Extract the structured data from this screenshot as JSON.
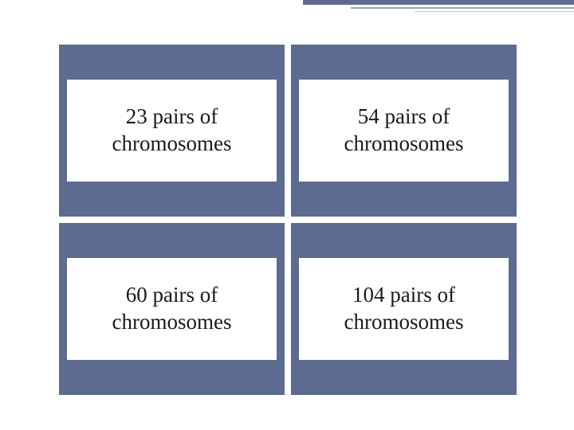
{
  "layout": {
    "slide_width": 720,
    "slide_height": 540,
    "background_color": "#ffffff",
    "grid_gap": 8
  },
  "colors": {
    "cell_bg": "#5d6b90",
    "card_bg": "#ffffff",
    "text": "#1a1a1a",
    "deco_dark": "#5d6b90",
    "deco_mid": "#9aa3bd",
    "deco_light": "#c3c9d8"
  },
  "typography": {
    "font_family": "Georgia, serif",
    "card_fontsize_pt": 20
  },
  "options": [
    {
      "label": "23 pairs of chromosomes"
    },
    {
      "label": "54 pairs of chromosomes"
    },
    {
      "label": "60 pairs of chromosomes"
    },
    {
      "label": "104 pairs of chromosomes"
    }
  ]
}
